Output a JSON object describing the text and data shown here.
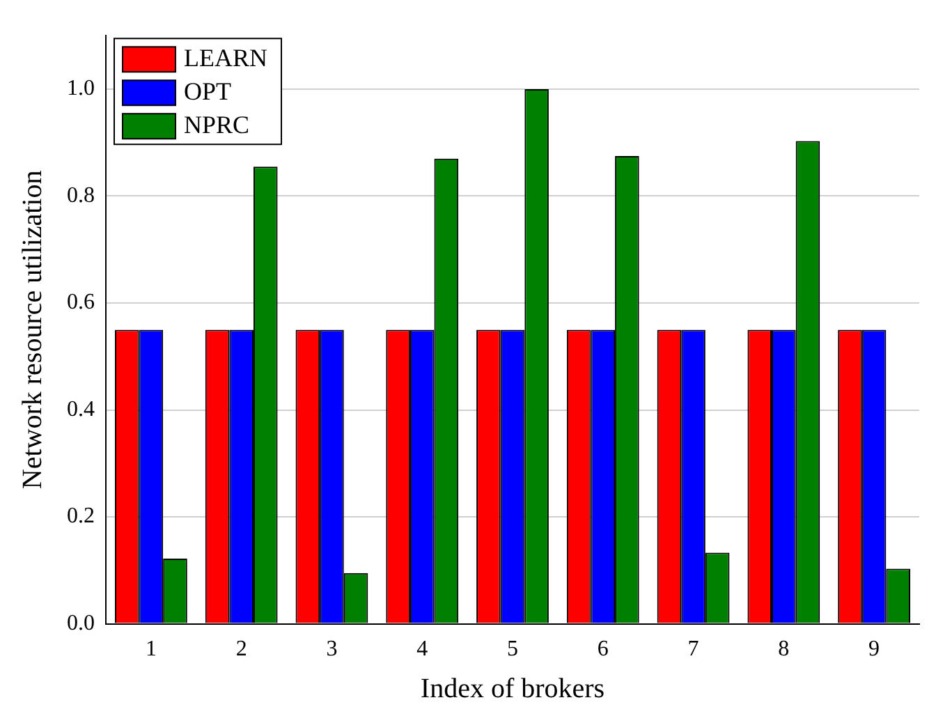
{
  "chart_data": {
    "type": "bar",
    "xlabel": "Index of brokers",
    "ylabel": "Network resource utilization",
    "categories": [
      "1",
      "2",
      "3",
      "4",
      "5",
      "6",
      "7",
      "8",
      "9"
    ],
    "series": [
      {
        "name": "LEARN",
        "color": "#ff0000",
        "values": [
          0.55,
          0.55,
          0.55,
          0.55,
          0.55,
          0.55,
          0.55,
          0.55,
          0.55
        ]
      },
      {
        "name": "OPT",
        "color": "#0000ff",
        "values": [
          0.55,
          0.55,
          0.55,
          0.55,
          0.55,
          0.55,
          0.55,
          0.55,
          0.55
        ]
      },
      {
        "name": "NPRC",
        "color": "#008000",
        "values": [
          0.122,
          0.855,
          0.095,
          0.87,
          1.0,
          0.875,
          0.133,
          0.903,
          0.103
        ]
      }
    ],
    "ylim": [
      0,
      1.1
    ],
    "yticks": [
      {
        "value": 0,
        "label": "0.0"
      },
      {
        "value": 0.2,
        "label": "0.2"
      },
      {
        "value": 0.4,
        "label": "0.4"
      },
      {
        "value": 0.6,
        "label": "0.6"
      },
      {
        "value": 0.8,
        "label": "0.8"
      },
      {
        "value": 1,
        "label": "1.0"
      }
    ],
    "grid": "y",
    "legend": "top left"
  }
}
